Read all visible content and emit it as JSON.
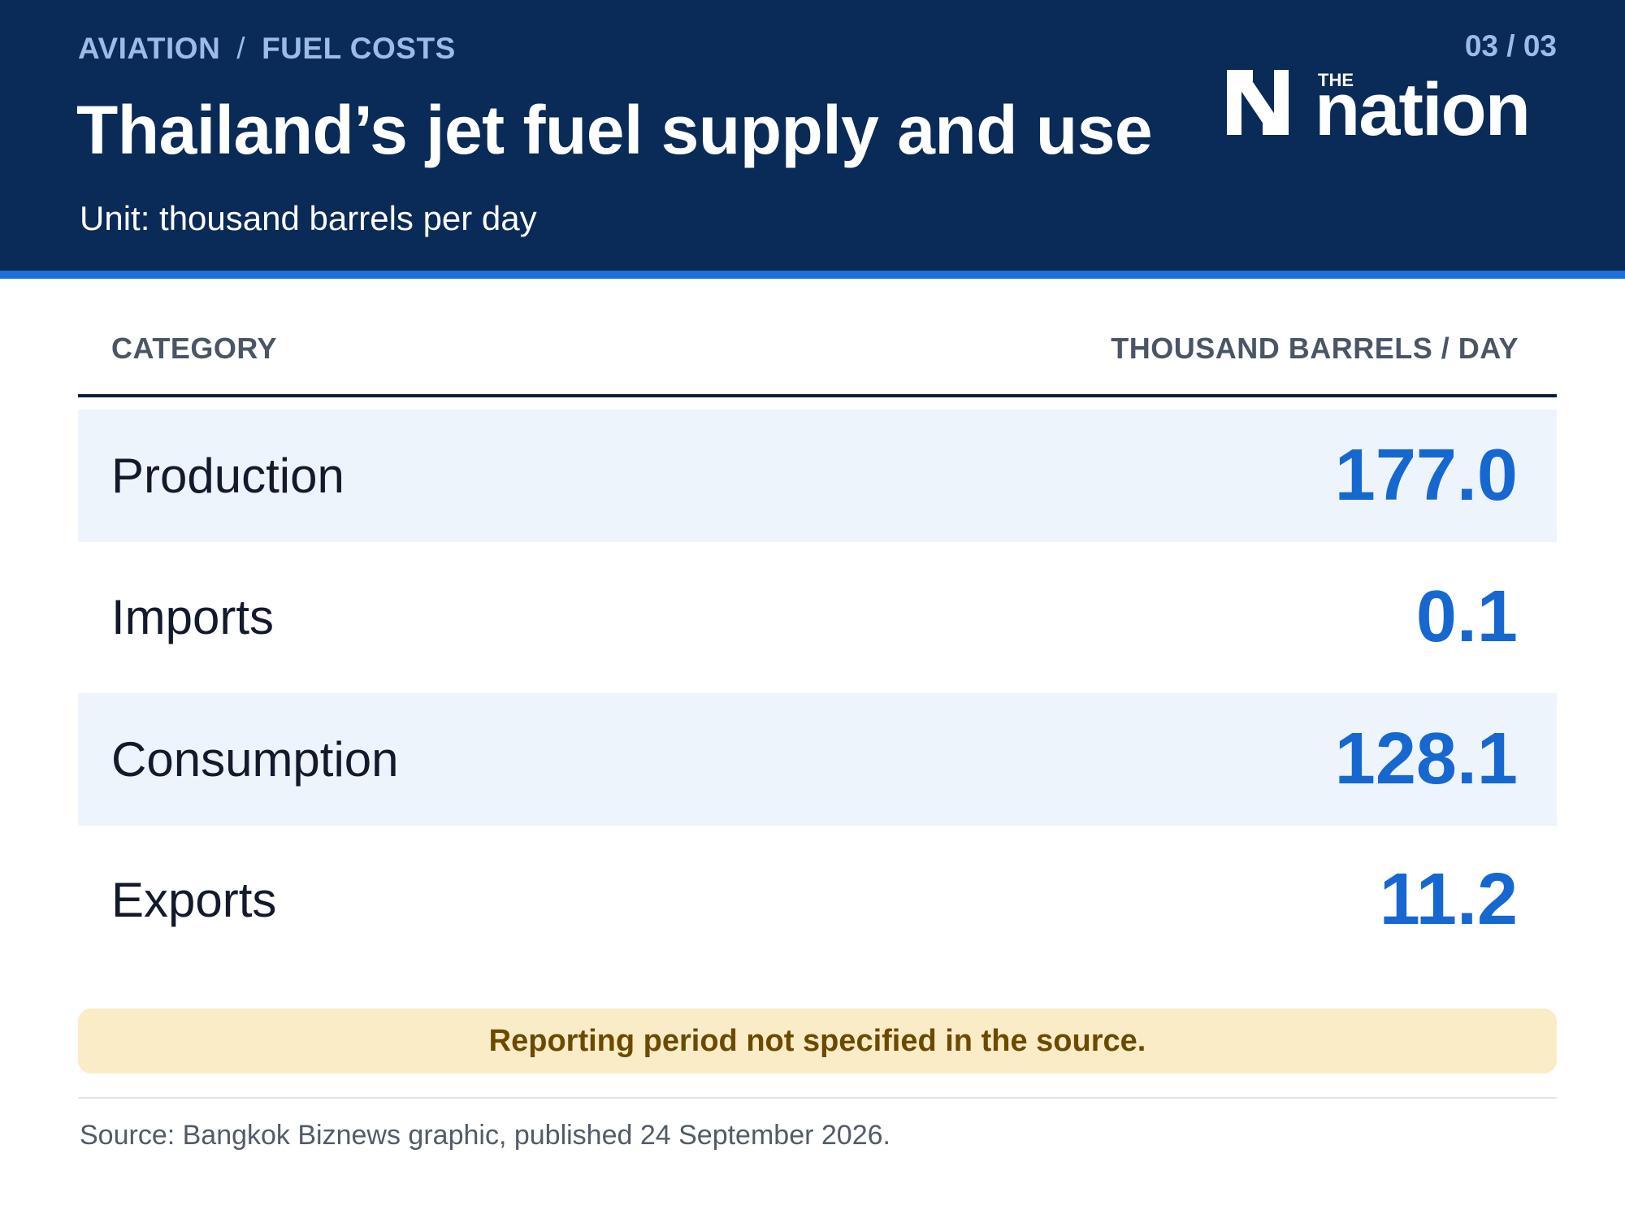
{
  "header": {
    "breadcrumb": [
      "AVIATION",
      "FUEL COSTS"
    ],
    "breadcrumb_separator": "/",
    "page_counter": "03 / 03",
    "title": "Thailand’s jet fuel supply and use",
    "subtitle": "Unit: thousand barrels per day",
    "logo": {
      "the": "THE",
      "wordmark": "nation",
      "icon": "nation-n-logo-icon"
    }
  },
  "colors": {
    "header_bg": "#0a2a57",
    "accent_stripe": "#1f6fd9",
    "value_blue": "#1668d0",
    "row_shade": "#eef4fb",
    "note_bg": "#fbecc8",
    "note_text": "#6b4a00"
  },
  "chart_data": {
    "type": "table",
    "columns": [
      "CATEGORY",
      "THOUSAND BARRELS / DAY"
    ],
    "rows": [
      {
        "category": "Production",
        "value": "177.0"
      },
      {
        "category": "Imports",
        "value": "0.1"
      },
      {
        "category": "Consumption",
        "value": "128.1"
      },
      {
        "category": "Exports",
        "value": "11.2"
      }
    ]
  },
  "note": "Reporting period not specified in the source.",
  "source": "Source: Bangkok Biznews graphic, published 24 September 2026."
}
